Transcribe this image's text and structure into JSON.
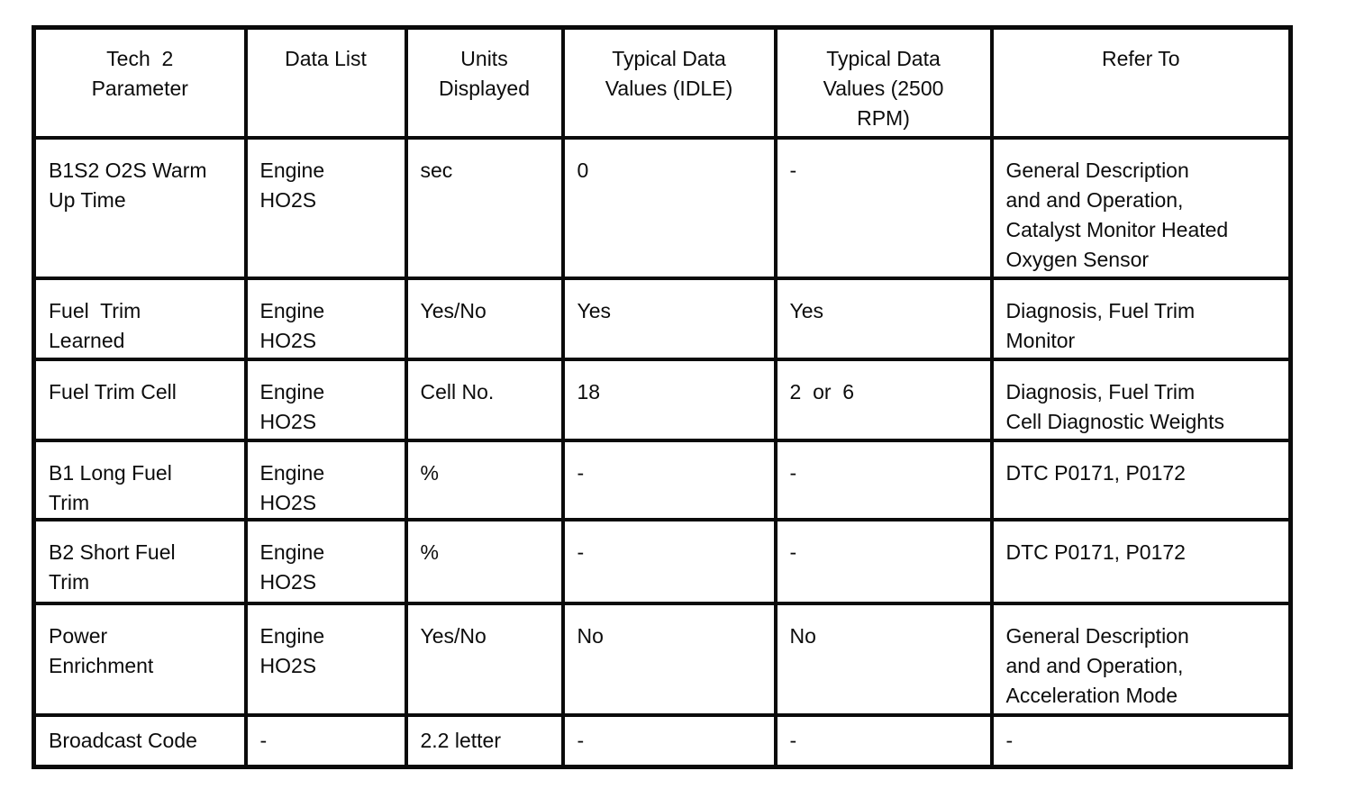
{
  "colors": {
    "background": "#ffffff",
    "border": "#0b0b0b",
    "text": "#0c0c0c"
  },
  "table": {
    "headers": [
      "Tech  2\nParameter",
      "Data List",
      "Units\nDisplayed",
      "Typical Data\nValues (IDLE)",
      "Typical Data\nValues (2500\nRPM)",
      "Refer To"
    ],
    "rows": [
      [
        "B1S2 O2S Warm\nUp Time",
        "Engine\nHO2S",
        "sec",
        "0",
        "-",
        "General Description\nand and Operation,\nCatalyst Monitor Heated\nOxygen Sensor"
      ],
      [
        "Fuel  Trim\nLearned",
        "Engine\nHO2S",
        "Yes/No",
        "Yes",
        "Yes",
        "Diagnosis, Fuel Trim\nMonitor"
      ],
      [
        "Fuel Trim Cell",
        "Engine\nHO2S",
        "Cell No.",
        "18",
        "2  or  6",
        "Diagnosis, Fuel Trim\nCell Diagnostic Weights"
      ],
      [
        "B1 Long Fuel\nTrim",
        "Engine\nHO2S",
        "%",
        "-",
        "-",
        "DTC P0171, P0172"
      ],
      [
        "B2 Short Fuel\nTrim",
        "Engine\nHO2S",
        "%",
        "-",
        "-",
        "DTC P0171, P0172"
      ],
      [
        "Power\nEnrichment",
        "Engine\nHO2S",
        "Yes/No",
        "No",
        "No",
        "General Description\nand and Operation,\nAcceleration Mode"
      ],
      [
        "Broadcast Code",
        "-",
        "2.2 letter",
        "-",
        "-",
        "-"
      ]
    ]
  }
}
